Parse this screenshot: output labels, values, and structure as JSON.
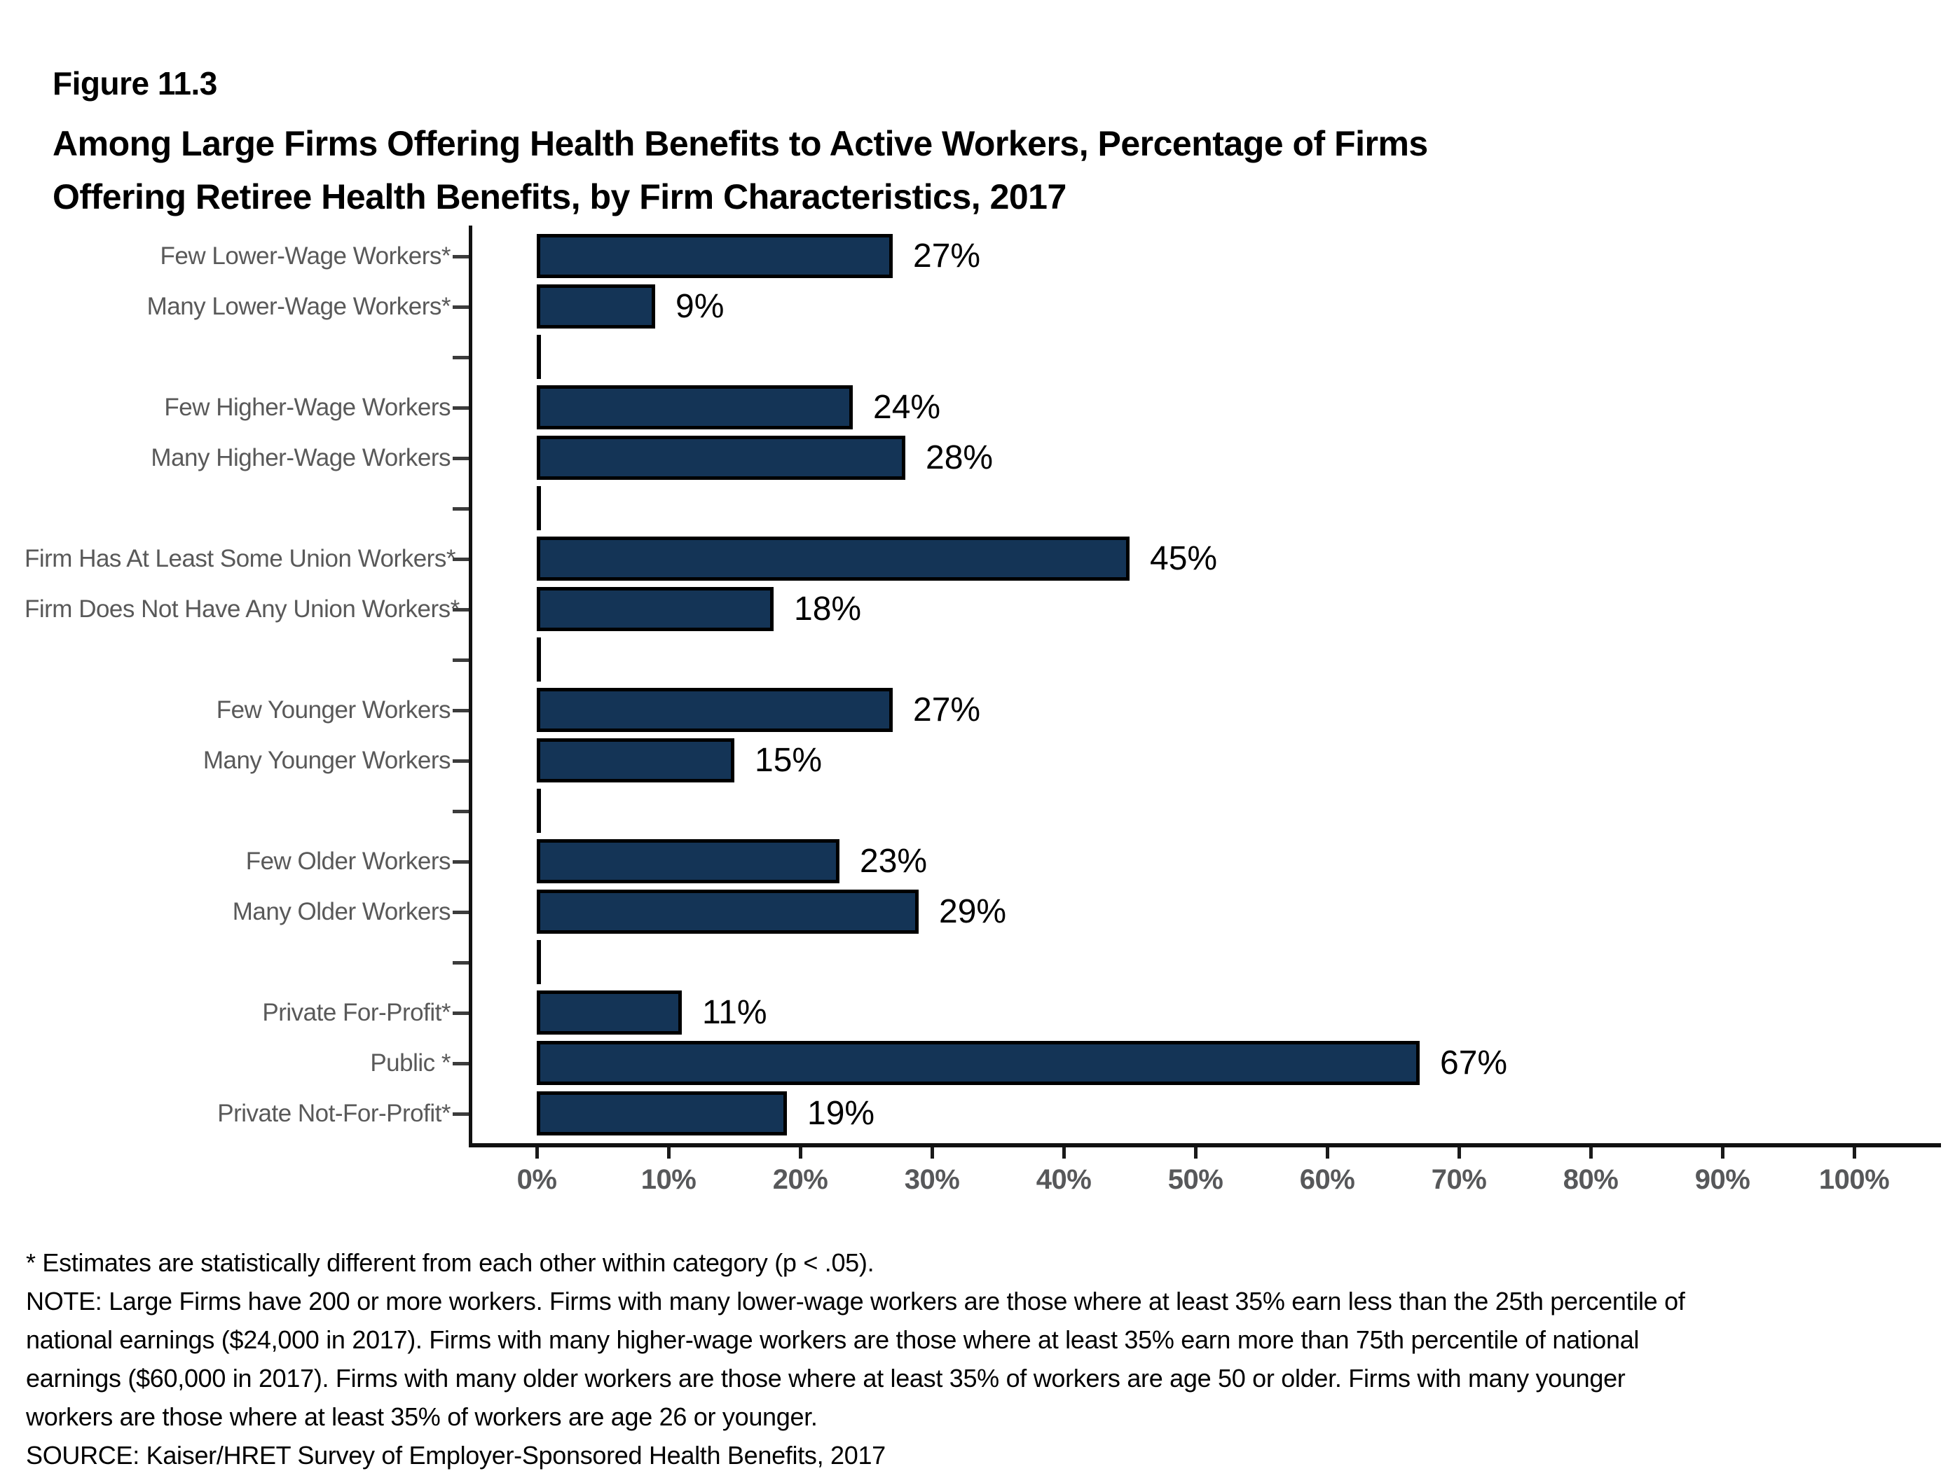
{
  "figure_label": "Figure 11.3",
  "title_line1": "Among Large Firms Offering Health Benefits to Active Workers, Percentage of Firms",
  "title_line2": "Offering Retiree Health Benefits, by Firm Characteristics, 2017",
  "chart_data": {
    "type": "bar",
    "orientation": "horizontal",
    "title": "Among Large Firms Offering Health Benefits to Active Workers, Percentage of Firms Offering Retiree Health Benefits, by Firm Characteristics, 2017",
    "unit": "percent",
    "categories": [
      "Few Lower-Wage Workers*",
      "Many Lower-Wage Workers*",
      "Few Higher-Wage Workers",
      "Many Higher-Wage Workers",
      "Firm Has At Least Some Union Workers*",
      "Firm Does Not Have Any Union Workers*",
      "Few Younger Workers",
      "Many Younger Workers",
      "Few Older Workers",
      "Many Older Workers",
      "Private For-Profit*",
      "Public *",
      "Private Not-For-Profit*"
    ],
    "values": [
      27,
      9,
      24,
      28,
      45,
      18,
      27,
      15,
      23,
      29,
      11,
      67,
      19
    ],
    "value_labels": [
      "27%",
      "9%",
      "24%",
      "28%",
      "45%",
      "18%",
      "27%",
      "15%",
      "23%",
      "29%",
      "11%",
      "67%",
      "19%"
    ],
    "rows": [
      {
        "label": "Few Lower-Wage Workers*",
        "value": 27,
        "display": "27%"
      },
      {
        "label": "Many Lower-Wage Workers*",
        "value": 9,
        "display": "9%"
      },
      {
        "gap": true
      },
      {
        "label": "Few Higher-Wage Workers",
        "value": 24,
        "display": "24%"
      },
      {
        "label": "Many Higher-Wage Workers",
        "value": 28,
        "display": "28%"
      },
      {
        "gap": true
      },
      {
        "label": "Firm Has At Least Some Union Workers*",
        "value": 45,
        "display": "45%"
      },
      {
        "label": "Firm Does Not Have Any Union Workers*",
        "value": 18,
        "display": "18%"
      },
      {
        "gap": true
      },
      {
        "label": "Few Younger Workers",
        "value": 27,
        "display": "27%"
      },
      {
        "label": "Many Younger Workers",
        "value": 15,
        "display": "15%"
      },
      {
        "gap": true
      },
      {
        "label": "Few Older Workers",
        "value": 23,
        "display": "23%"
      },
      {
        "label": "Many Older Workers",
        "value": 29,
        "display": "29%"
      },
      {
        "gap": true
      },
      {
        "label": "Private For-Profit*",
        "value": 11,
        "display": "11%"
      },
      {
        "label": "Public *",
        "value": 67,
        "display": "67%"
      },
      {
        "label": "Private Not-For-Profit*",
        "value": 19,
        "display": "19%"
      }
    ],
    "x_ticks": [
      "0%",
      "10%",
      "20%",
      "30%",
      "40%",
      "50%",
      "60%",
      "70%",
      "80%",
      "90%",
      "100%"
    ],
    "xlim": [
      0,
      106
    ],
    "grid": false,
    "legend": false,
    "value_label_position": "right-of-bar",
    "colors": {
      "bar_fill": "#143456",
      "bar_border": "#000000",
      "category_label": "#595959",
      "axis_tick_label": "#57585a",
      "value_label": "#000000",
      "axis_line": "#111111"
    }
  },
  "footnotes": [
    "* Estimates are statistically different from each other within category (p < .05).",
    "NOTE: Large Firms have 200 or more workers. Firms with many lower-wage workers are those where at least 35% earn less than the 25th percentile of",
    "national earnings ($24,000 in 2017). Firms with many higher-wage workers are those where at least 35% earn more than 75th percentile of national",
    "earnings ($60,000 in 2017). Firms with many older workers are those where at least 35% of workers are age 50 or older. Firms with many younger",
    "workers are those where at least 35% of workers are age 26 or younger.",
    "SOURCE: Kaiser/HRET Survey of Employer-Sponsored Health Benefits, 2017"
  ]
}
